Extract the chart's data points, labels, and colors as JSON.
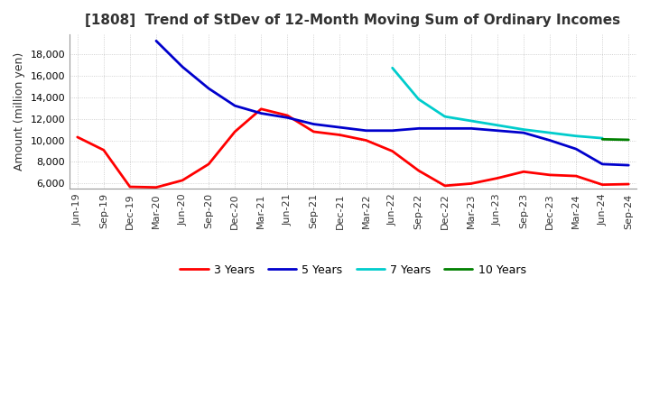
{
  "title": "[1808]  Trend of StDev of 12-Month Moving Sum of Ordinary Incomes",
  "ylabel": "Amount (million yen)",
  "background_color": "#ffffff",
  "grid_color": "#aaaaaa",
  "x_labels": [
    "Jun-19",
    "Sep-19",
    "Dec-19",
    "Mar-20",
    "Jun-20",
    "Sep-20",
    "Dec-20",
    "Mar-21",
    "Jun-21",
    "Sep-21",
    "Dec-21",
    "Mar-22",
    "Jun-22",
    "Sep-22",
    "Dec-22",
    "Mar-23",
    "Jun-23",
    "Sep-23",
    "Dec-23",
    "Mar-24",
    "Jun-24",
    "Sep-24"
  ],
  "series": {
    "3 Years": {
      "color": "#ff0000",
      "data": [
        10300,
        9100,
        5700,
        5650,
        6300,
        7800,
        10800,
        12900,
        12300,
        10800,
        10500,
        10000,
        9000,
        7200,
        5800,
        6000,
        6500,
        7100,
        6800,
        6700,
        5900,
        5950
      ]
    },
    "5 Years": {
      "color": "#0000cc",
      "data": [
        null,
        null,
        null,
        19200,
        16800,
        14800,
        13200,
        12500,
        12100,
        11500,
        11200,
        10900,
        10900,
        11100,
        11100,
        11100,
        10900,
        10700,
        10000,
        9200,
        7800,
        7700
      ]
    },
    "7 Years": {
      "color": "#00cccc",
      "data": [
        null,
        null,
        null,
        null,
        null,
        null,
        null,
        null,
        null,
        null,
        null,
        null,
        16700,
        13800,
        12200,
        11800,
        11400,
        11000,
        10700,
        10400,
        10200,
        null
      ]
    },
    "10 Years": {
      "color": "#008000",
      "data": [
        null,
        null,
        null,
        null,
        null,
        null,
        null,
        null,
        null,
        null,
        null,
        null,
        null,
        null,
        null,
        null,
        null,
        null,
        null,
        null,
        10100,
        10050
      ]
    }
  },
  "ylim": [
    5500,
    19800
  ],
  "yticks": [
    6000,
    8000,
    10000,
    12000,
    14000,
    16000,
    18000
  ],
  "legend_ncol": 4,
  "title_fontsize": 11,
  "ylabel_fontsize": 9,
  "tick_fontsize": 8
}
